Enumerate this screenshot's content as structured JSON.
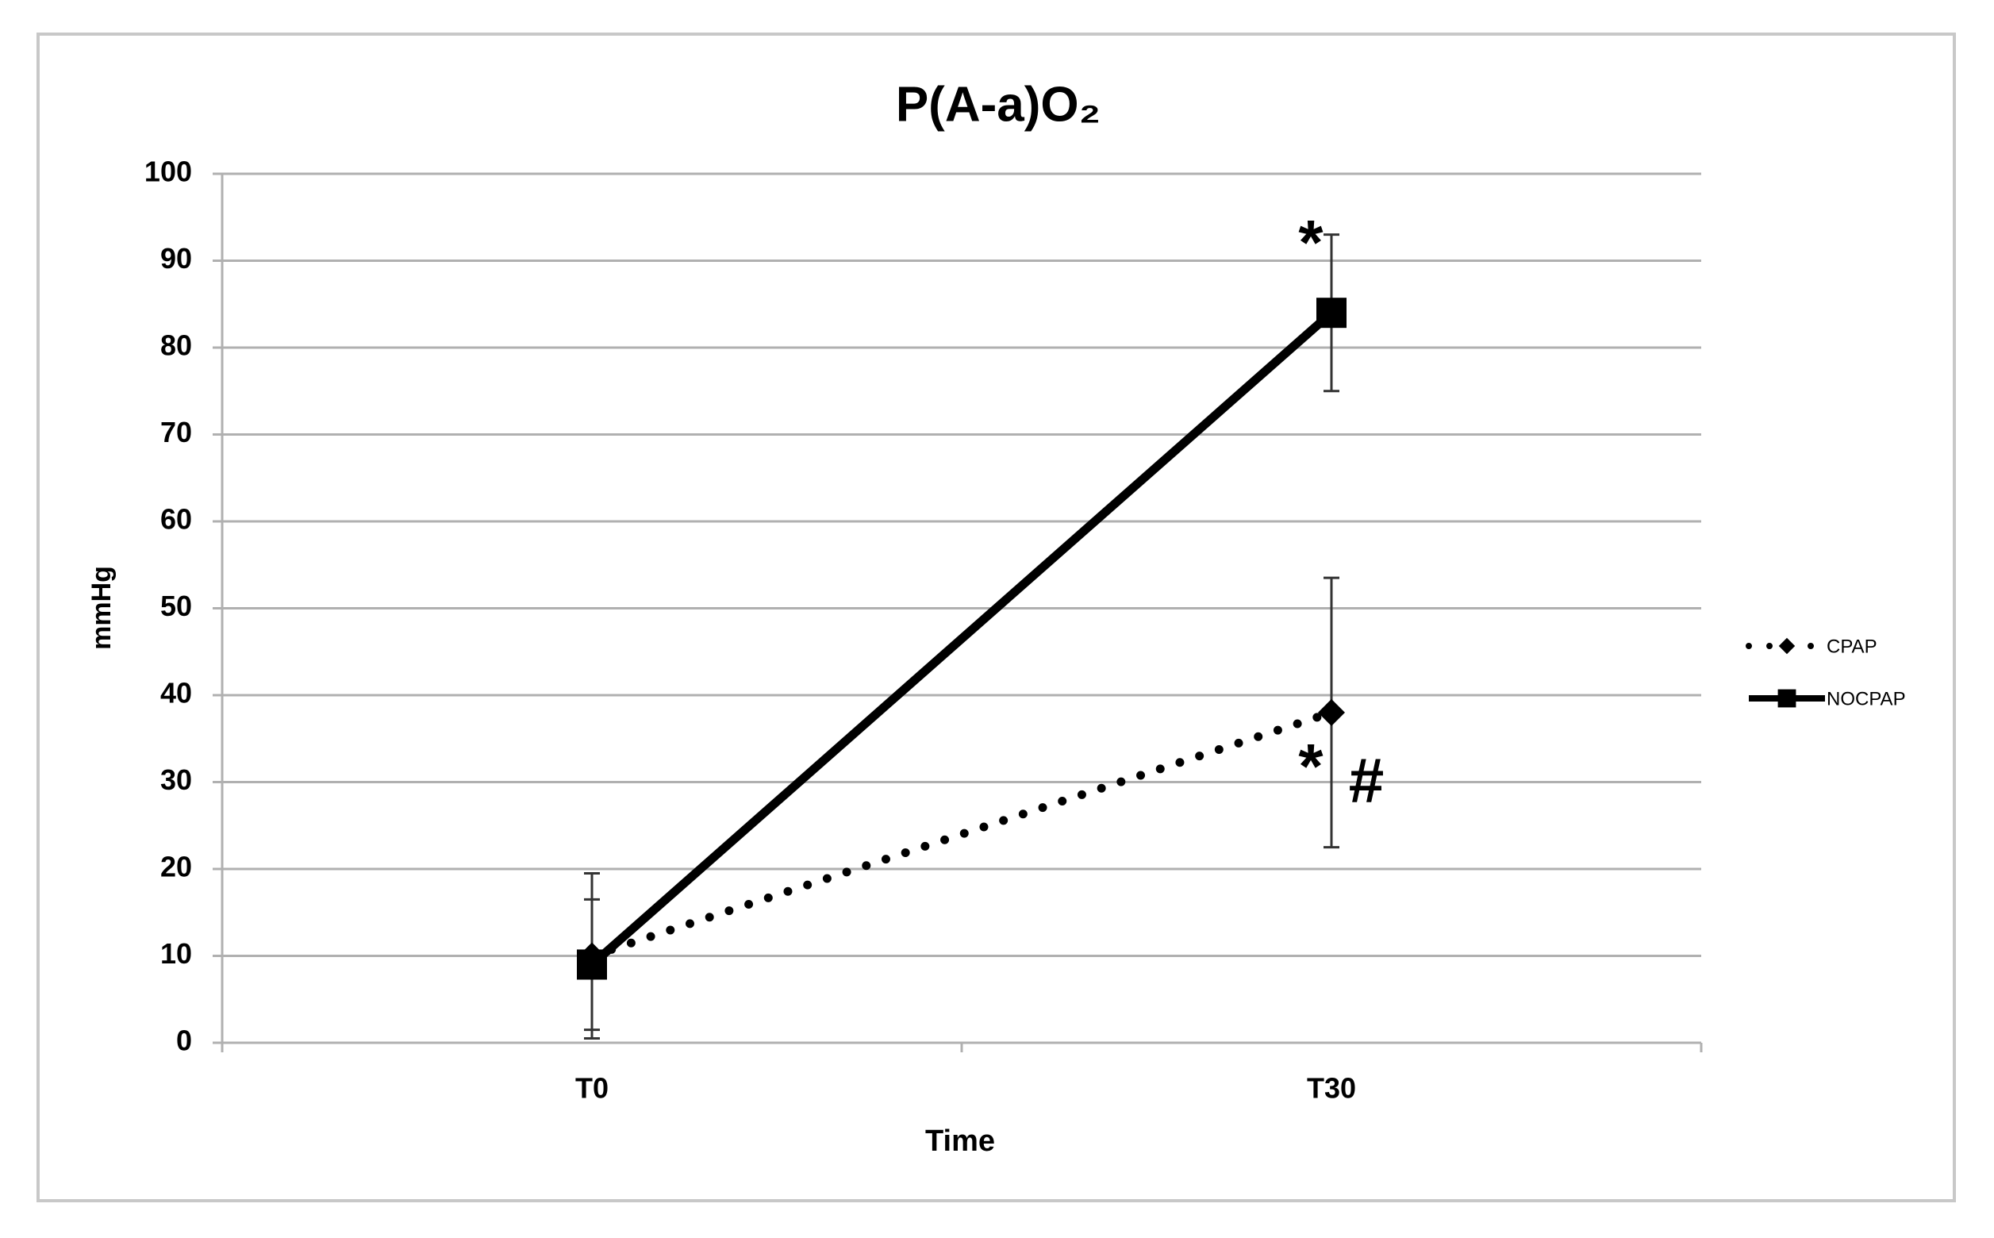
{
  "chart_data": {
    "type": "line",
    "title": "P(A-a)O₂",
    "x_label": "Time",
    "y_label": "mmHg",
    "categories": [
      "T0",
      "T30"
    ],
    "series": [
      {
        "name": "CPAP",
        "color": "#000000",
        "line": "dotted",
        "marker": "diamond",
        "values": [
          10,
          38
        ],
        "errors": [
          9.5,
          15.5
        ]
      },
      {
        "name": "NOCPAP",
        "color": "#000000",
        "line": "solid",
        "marker": "square",
        "values": [
          9,
          84
        ],
        "errors": [
          7.5,
          9
        ]
      }
    ],
    "ylim": [
      0,
      100
    ],
    "yticks": [
      0,
      10,
      20,
      30,
      40,
      50,
      60,
      70,
      80,
      90,
      100
    ],
    "grid": true,
    "legend": "right",
    "annotations": [
      "*",
      "*",
      "#"
    ]
  }
}
